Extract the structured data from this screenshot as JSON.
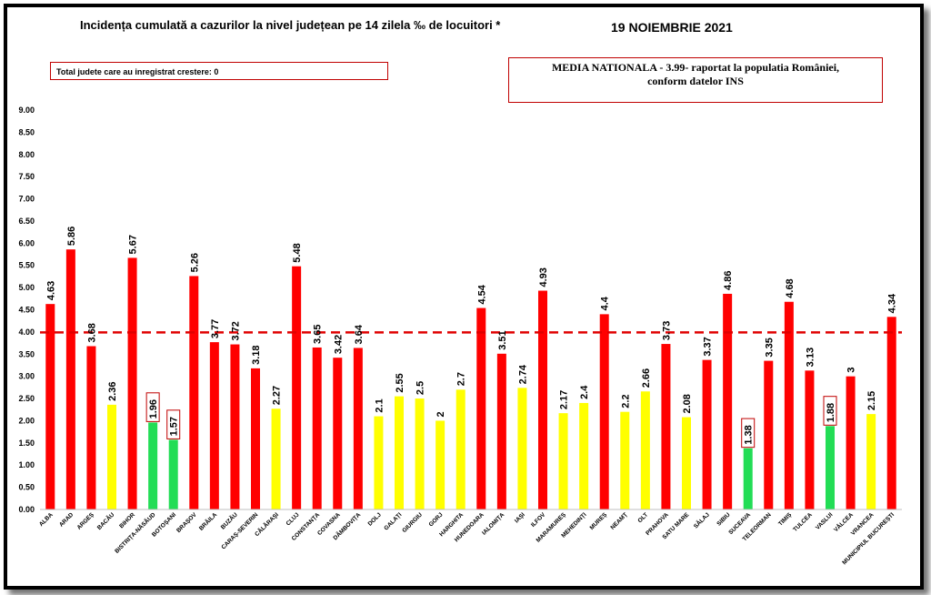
{
  "title": "Incidența cumulată a cazurilor la nivel județean pe 14 zilela ‰ de locuitori *",
  "date": "19 NOIEMBRIE 2021",
  "growth_note": "Total judete care au inregistrat crestere: 0",
  "national_average": {
    "line1": "MEDIA NATIONALA  - 3.99-  raportat la populatia României,",
    "line2": "conform datelor INS",
    "value": 3.99
  },
  "colors": {
    "red": "#ff0000",
    "yellow": "#ffff00",
    "green": "#22dd55",
    "ref_line": "#e00000"
  },
  "chart_data": {
    "type": "bar",
    "ylim": [
      0,
      9
    ],
    "yticks": [
      "0.00",
      "0.50",
      "1.00",
      "1.50",
      "2.00",
      "2.50",
      "3.00",
      "3.50",
      "4.00",
      "4.50",
      "5.00",
      "5.50",
      "6.00",
      "6.50",
      "7.00",
      "7.50",
      "8.00",
      "8.50",
      "9.00"
    ],
    "reference_line": 3.99,
    "categories": [
      "ALBA",
      "ARAD",
      "ARGEȘ",
      "BACĂU",
      "BIHOR",
      "BISTRIȚA-NĂSĂUD",
      "BOTOȘANI",
      "BRAȘOV",
      "BRĂILA",
      "BUZĂU",
      "CARAȘ-SEVERIN",
      "CĂLĂRAȘI",
      "CLUJ",
      "CONSTANȚA",
      "COVASNA",
      "DÂMBOVIȚA",
      "DOLJ",
      "GALAȚI",
      "GIURGIU",
      "GORJ",
      "HARGHITA",
      "HUNEDOARA",
      "IALOMIȚA",
      "IAȘI",
      "ILFOV",
      "MARAMUREȘ",
      "MEHEDINȚI",
      "MUREȘ",
      "NEAMȚ",
      "OLT",
      "PRAHOVA",
      "SATU MARE",
      "SĂLAJ",
      "SIBIU",
      "SUCEAVA",
      "TELEORMAN",
      "TIMIȘ",
      "TULCEA",
      "VASLUI",
      "VÂLCEA",
      "VRANCEA",
      "MUNICIPIUL BUCUREȘTI"
    ],
    "values": [
      4.63,
      5.86,
      3.68,
      2.36,
      5.67,
      1.96,
      1.57,
      5.26,
      3.77,
      3.72,
      3.18,
      2.27,
      5.48,
      3.65,
      3.42,
      3.64,
      2.1,
      2.55,
      2.5,
      2,
      2.7,
      4.54,
      3.51,
      2.74,
      4.93,
      2.17,
      2.4,
      4.4,
      2.2,
      2.66,
      3.73,
      2.08,
      3.37,
      4.86,
      1.38,
      3.35,
      4.68,
      3.13,
      1.88,
      3,
      2.15,
      4.34
    ],
    "labels": [
      "4.63",
      "5.86",
      "3.68",
      "2.36",
      "5.67",
      "1.96",
      "1.57",
      "5.26",
      "3.77",
      "3.72",
      "3.18",
      "2.27",
      "5.48",
      "3.65",
      "3.42",
      "3.64",
      "2.1",
      "2.55",
      "2.5",
      "2",
      "2.7",
      "4.54",
      "3.51",
      "2.74",
      "4.93",
      "2.17",
      "2.4",
      "4.4",
      "2.2",
      "2.66",
      "3.73",
      "2.08",
      "3.37",
      "4.86",
      "1.38",
      "3.35",
      "4.68",
      "3.13",
      "1.88",
      "3",
      "2.15",
      "4.34"
    ],
    "colors": [
      "red",
      "red",
      "red",
      "yellow",
      "red",
      "green",
      "green",
      "red",
      "red",
      "red",
      "red",
      "yellow",
      "red",
      "red",
      "red",
      "red",
      "yellow",
      "yellow",
      "yellow",
      "yellow",
      "yellow",
      "red",
      "red",
      "yellow",
      "red",
      "yellow",
      "yellow",
      "red",
      "yellow",
      "yellow",
      "red",
      "yellow",
      "red",
      "red",
      "green",
      "red",
      "red",
      "red",
      "green",
      "red",
      "yellow",
      "red"
    ]
  }
}
